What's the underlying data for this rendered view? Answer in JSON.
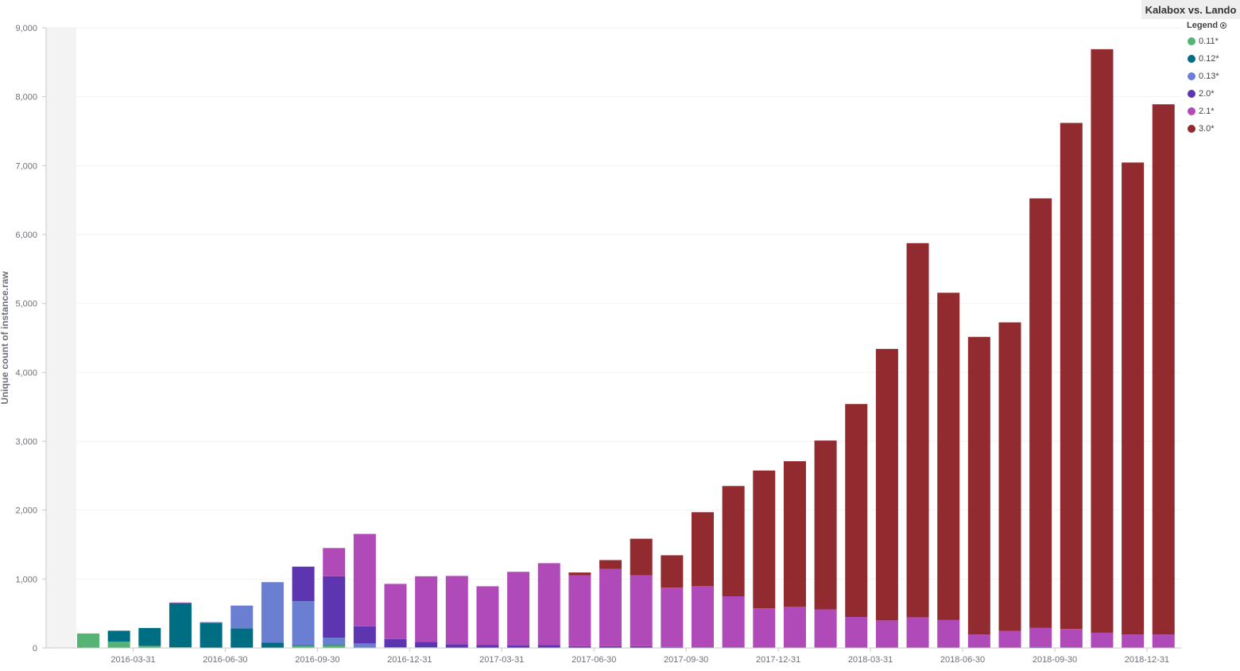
{
  "title": "Kalabox vs. Lando",
  "legend": {
    "header": "Legend",
    "items": [
      {
        "label": "0.11*",
        "color": "#54b474"
      },
      {
        "label": "0.12*",
        "color": "#006e82"
      },
      {
        "label": "0.13*",
        "color": "#6a7fd2"
      },
      {
        "label": "2.0*",
        "color": "#5e35b1"
      },
      {
        "label": "2.1*",
        "color": "#b04ab8"
      },
      {
        "label": "3.0*",
        "color": "#922b2f"
      }
    ]
  },
  "chart_data": {
    "type": "bar",
    "stacked": true,
    "ylabel": "Unique count of instance.raw",
    "ylim": [
      0,
      9000
    ],
    "yticks": [
      0,
      1000,
      2000,
      3000,
      4000,
      5000,
      6000,
      7000,
      8000,
      9000
    ],
    "ytick_labels": [
      "0",
      "1,000",
      "2,000",
      "3,000",
      "4,000",
      "5,000",
      "6,000",
      "7,000",
      "8,000",
      "9,000"
    ],
    "xtick_labels": [
      {
        "label": "2016-03-31",
        "after_index": 1
      },
      {
        "label": "2016-06-30",
        "after_index": 4
      },
      {
        "label": "2016-09-30",
        "after_index": 7
      },
      {
        "label": "2016-12-31",
        "after_index": 10
      },
      {
        "label": "2017-03-31",
        "after_index": 13
      },
      {
        "label": "2017-06-30",
        "after_index": 16
      },
      {
        "label": "2017-09-30",
        "after_index": 19
      },
      {
        "label": "2017-12-31",
        "after_index": 22
      },
      {
        "label": "2018-03-31",
        "after_index": 25
      },
      {
        "label": "2018-06-30",
        "after_index": 28
      },
      {
        "label": "2018-09-30",
        "after_index": 31
      },
      {
        "label": "2018-12-31",
        "after_index": 34
      }
    ],
    "categories": [
      "2016-01",
      "2016-02",
      "2016-03",
      "2016-04",
      "2016-05",
      "2016-06",
      "2016-07",
      "2016-08",
      "2016-09",
      "2016-10",
      "2016-11",
      "2016-12",
      "2017-01",
      "2017-02",
      "2017-03",
      "2017-04",
      "2017-05",
      "2017-06",
      "2017-07",
      "2017-08",
      "2017-09",
      "2017-10",
      "2017-11",
      "2017-12",
      "2018-01",
      "2018-02",
      "2018-03",
      "2018-04",
      "2018-05",
      "2018-06",
      "2018-07",
      "2018-08",
      "2018-09",
      "2018-10",
      "2018-11",
      "2018-12"
    ],
    "series": [
      {
        "name": "0.11*",
        "color": "#54b474",
        "values": [
          210,
          90,
          30,
          10,
          5,
          5,
          5,
          30,
          40,
          5,
          0,
          0,
          0,
          0,
          0,
          0,
          0,
          0,
          0,
          0,
          0,
          0,
          0,
          0,
          0,
          0,
          0,
          0,
          0,
          0,
          0,
          0,
          0,
          0,
          0,
          0
        ]
      },
      {
        "name": "0.12*",
        "color": "#006e82",
        "values": [
          0,
          160,
          260,
          640,
          360,
          280,
          70,
          10,
          10,
          0,
          0,
          0,
          0,
          0,
          0,
          0,
          0,
          0,
          0,
          0,
          0,
          0,
          0,
          0,
          0,
          0,
          0,
          0,
          0,
          0,
          0,
          0,
          0,
          0,
          0,
          0
        ]
      },
      {
        "name": "0.13*",
        "color": "#6a7fd2",
        "values": [
          0,
          0,
          0,
          0,
          10,
          330,
          880,
          640,
          100,
          60,
          10,
          10,
          5,
          5,
          5,
          5,
          5,
          5,
          5,
          5,
          0,
          0,
          0,
          0,
          0,
          0,
          0,
          0,
          0,
          0,
          0,
          0,
          0,
          0,
          0,
          0
        ]
      },
      {
        "name": "2.0*",
        "color": "#5e35b1",
        "values": [
          0,
          0,
          0,
          0,
          0,
          0,
          0,
          500,
          890,
          250,
          120,
          80,
          50,
          40,
          30,
          35,
          20,
          20,
          20,
          10,
          10,
          10,
          5,
          5,
          5,
          5,
          5,
          5,
          5,
          5,
          5,
          15,
          10,
          5,
          5,
          5
        ]
      },
      {
        "name": "2.1*",
        "color": "#b04ab8",
        "values": [
          0,
          0,
          0,
          10,
          0,
          0,
          0,
          0,
          410,
          1340,
          800,
          950,
          990,
          850,
          1070,
          1190,
          1030,
          1120,
          1030,
          860,
          890,
          740,
          570,
          595,
          555,
          445,
          395,
          440,
          400,
          190,
          240,
          275,
          265,
          215,
          190,
          190
        ]
      },
      {
        "name": "3.0*",
        "color": "#922b2f",
        "values": [
          0,
          0,
          0,
          0,
          0,
          0,
          0,
          0,
          0,
          0,
          0,
          0,
          0,
          0,
          0,
          0,
          40,
          130,
          530,
          470,
          1070,
          1600,
          2000,
          2110,
          2450,
          3090,
          3940,
          5430,
          4750,
          4320,
          4480,
          6235,
          7345,
          8470,
          6850,
          7695
        ]
      }
    ]
  }
}
